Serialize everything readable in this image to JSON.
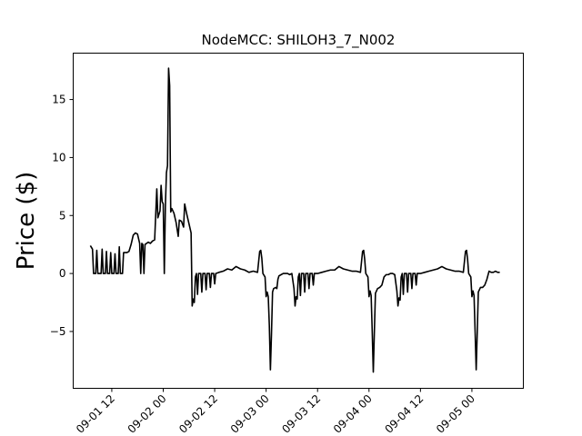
{
  "chart_data": {
    "type": "line",
    "title": "NodeMCC: SHILOH3_7_N002",
    "xlabel": "",
    "ylabel": "Price ($)",
    "x_axis_type": "time",
    "xlim": [
      "2015-09-01T03:00",
      "2015-09-05T12:00"
    ],
    "ylim": [
      -9.9,
      19.0
    ],
    "yticks": [
      -5,
      0,
      5,
      10,
      15
    ],
    "xticks": [
      {
        "x": "2015-09-01T12:00",
        "label": "09-01 12"
      },
      {
        "x": "2015-09-02T00:00",
        "label": "09-02 00"
      },
      {
        "x": "2015-09-02T12:00",
        "label": "09-02 12"
      },
      {
        "x": "2015-09-03T00:00",
        "label": "09-03 00"
      },
      {
        "x": "2015-09-03T12:00",
        "label": "09-03 12"
      },
      {
        "x": "2015-09-04T00:00",
        "label": "09-04 00"
      },
      {
        "x": "2015-09-04T12:00",
        "label": "09-04 12"
      },
      {
        "x": "2015-09-05T00:00",
        "label": "09-05 00"
      }
    ],
    "grid": false,
    "series": [
      {
        "color": "#000000",
        "points": [
          [
            "2015-09-01T07:00",
            2.4
          ],
          [
            "2015-09-01T07:30",
            2.1
          ],
          [
            "2015-09-01T07:45",
            0.0
          ],
          [
            "2015-09-01T08:15",
            0.0
          ],
          [
            "2015-09-01T08:30",
            2.0
          ],
          [
            "2015-09-01T08:45",
            0.0
          ],
          [
            "2015-09-01T09:30",
            0.0
          ],
          [
            "2015-09-01T09:45",
            2.1
          ],
          [
            "2015-09-01T10:00",
            0.0
          ],
          [
            "2015-09-01T10:30",
            0.0
          ],
          [
            "2015-09-01T10:45",
            1.9
          ],
          [
            "2015-09-01T11:00",
            0.0
          ],
          [
            "2015-09-01T11:30",
            0.0
          ],
          [
            "2015-09-01T11:45",
            1.8
          ],
          [
            "2015-09-01T12:00",
            0.0
          ],
          [
            "2015-09-01T12:30",
            0.0
          ],
          [
            "2015-09-01T12:45",
            1.7
          ],
          [
            "2015-09-01T13:00",
            0.0
          ],
          [
            "2015-09-01T13:30",
            0.0
          ],
          [
            "2015-09-01T13:45",
            2.3
          ],
          [
            "2015-09-01T14:00",
            0.0
          ],
          [
            "2015-09-01T14:30",
            0.0
          ],
          [
            "2015-09-01T14:45",
            1.8
          ],
          [
            "2015-09-01T15:30",
            1.8
          ],
          [
            "2015-09-01T16:00",
            1.9
          ],
          [
            "2015-09-01T16:30",
            2.5
          ],
          [
            "2015-09-01T17:00",
            3.3
          ],
          [
            "2015-09-01T17:30",
            3.5
          ],
          [
            "2015-09-01T18:00",
            3.4
          ],
          [
            "2015-09-01T18:30",
            2.6
          ],
          [
            "2015-09-01T18:45",
            0.0
          ],
          [
            "2015-09-01T19:00",
            2.6
          ],
          [
            "2015-09-01T19:15",
            2.5
          ],
          [
            "2015-09-01T19:30",
            0.0
          ],
          [
            "2015-09-01T19:45",
            2.5
          ],
          [
            "2015-09-01T20:30",
            2.7
          ],
          [
            "2015-09-01T21:00",
            2.6
          ],
          [
            "2015-09-01T21:30",
            2.8
          ],
          [
            "2015-09-01T22:00",
            2.9
          ],
          [
            "2015-09-01T22:30",
            7.3
          ],
          [
            "2015-09-01T22:45",
            4.8
          ],
          [
            "2015-09-01T23:15",
            5.4
          ],
          [
            "2015-09-01T23:30",
            7.6
          ],
          [
            "2015-09-01T23:45",
            6.2
          ],
          [
            "2015-09-02T00:00",
            6.0
          ],
          [
            "2015-09-02T00:15",
            0.0
          ],
          [
            "2015-09-02T00:30",
            5.8
          ],
          [
            "2015-09-02T00:45",
            8.7
          ],
          [
            "2015-09-02T01:00",
            9.3
          ],
          [
            "2015-09-02T01:15",
            17.7
          ],
          [
            "2015-09-02T01:30",
            16.2
          ],
          [
            "2015-09-02T01:45",
            5.3
          ],
          [
            "2015-09-02T02:00",
            5.6
          ],
          [
            "2015-09-02T02:30",
            5.2
          ],
          [
            "2015-09-02T03:00",
            4.4
          ],
          [
            "2015-09-02T03:30",
            3.2
          ],
          [
            "2015-09-02T03:45",
            4.6
          ],
          [
            "2015-09-02T04:15",
            4.5
          ],
          [
            "2015-09-02T04:45",
            4.0
          ],
          [
            "2015-09-02T05:00",
            6.0
          ],
          [
            "2015-09-02T05:30",
            5.1
          ],
          [
            "2015-09-02T06:00",
            4.3
          ],
          [
            "2015-09-02T06:30",
            3.5
          ],
          [
            "2015-09-02T06:45",
            -2.8
          ],
          [
            "2015-09-02T07:00",
            -2.2
          ],
          [
            "2015-09-02T07:15",
            -2.5
          ],
          [
            "2015-09-02T07:30",
            -0.3
          ],
          [
            "2015-09-02T07:45",
            0.0
          ],
          [
            "2015-09-02T08:00",
            -1.8
          ],
          [
            "2015-09-02T08:15",
            0.0
          ],
          [
            "2015-09-02T08:45",
            0.0
          ],
          [
            "2015-09-02T09:00",
            -1.6
          ],
          [
            "2015-09-02T09:15",
            0.0
          ],
          [
            "2015-09-02T09:45",
            0.0
          ],
          [
            "2015-09-02T10:00",
            -1.4
          ],
          [
            "2015-09-02T10:15",
            0.0
          ],
          [
            "2015-09-02T10:45",
            0.0
          ],
          [
            "2015-09-02T11:00",
            -1.2
          ],
          [
            "2015-09-02T11:15",
            0.0
          ],
          [
            "2015-09-02T11:45",
            0.0
          ],
          [
            "2015-09-02T12:00",
            -0.9
          ],
          [
            "2015-09-02T12:15",
            0.0
          ],
          [
            "2015-09-02T13:00",
            0.1
          ],
          [
            "2015-09-02T14:00",
            0.2
          ],
          [
            "2015-09-02T15:00",
            0.4
          ],
          [
            "2015-09-02T16:00",
            0.3
          ],
          [
            "2015-09-02T17:00",
            0.6
          ],
          [
            "2015-09-02T18:00",
            0.4
          ],
          [
            "2015-09-02T19:00",
            0.3
          ],
          [
            "2015-09-02T20:00",
            0.1
          ],
          [
            "2015-09-02T21:00",
            0.2
          ],
          [
            "2015-09-02T22:00",
            0.1
          ],
          [
            "2015-09-02T22:30",
            1.9
          ],
          [
            "2015-09-02T22:45",
            2.0
          ],
          [
            "2015-09-02T23:00",
            1.3
          ],
          [
            "2015-09-02T23:15",
            0.0
          ],
          [
            "2015-09-02T23:45",
            -0.3
          ],
          [
            "2015-09-03T00:00",
            -2.0
          ],
          [
            "2015-09-03T00:15",
            -1.6
          ],
          [
            "2015-09-03T00:30",
            -2.0
          ],
          [
            "2015-09-03T00:45",
            -4.5
          ],
          [
            "2015-09-03T01:00",
            -8.3
          ],
          [
            "2015-09-03T01:15",
            -5.2
          ],
          [
            "2015-09-03T01:30",
            -1.6
          ],
          [
            "2015-09-03T01:45",
            -1.3
          ],
          [
            "2015-09-03T02:15",
            -1.2
          ],
          [
            "2015-09-03T02:30",
            -1.3
          ],
          [
            "2015-09-03T02:45",
            -0.5
          ],
          [
            "2015-09-03T03:00",
            -0.2
          ],
          [
            "2015-09-03T03:30",
            -0.1
          ],
          [
            "2015-09-03T04:00",
            0.0
          ],
          [
            "2015-09-03T05:00",
            0.0
          ],
          [
            "2015-09-03T05:30",
            -0.1
          ],
          [
            "2015-09-03T06:00",
            0.0
          ],
          [
            "2015-09-03T06:30",
            -1.3
          ],
          [
            "2015-09-03T06:45",
            -2.8
          ],
          [
            "2015-09-03T07:00",
            -2.0
          ],
          [
            "2015-09-03T07:15",
            -2.2
          ],
          [
            "2015-09-03T07:30",
            -0.3
          ],
          [
            "2015-09-03T07:45",
            0.0
          ],
          [
            "2015-09-03T08:00",
            -1.9
          ],
          [
            "2015-09-03T08:15",
            0.0
          ],
          [
            "2015-09-03T08:45",
            0.0
          ],
          [
            "2015-09-03T09:00",
            -1.6
          ],
          [
            "2015-09-03T09:15",
            0.0
          ],
          [
            "2015-09-03T09:45",
            0.0
          ],
          [
            "2015-09-03T10:00",
            -1.3
          ],
          [
            "2015-09-03T10:15",
            0.0
          ],
          [
            "2015-09-03T10:45",
            0.0
          ],
          [
            "2015-09-03T11:00",
            -1.0
          ],
          [
            "2015-09-03T11:15",
            0.0
          ],
          [
            "2015-09-03T12:00",
            0.0
          ],
          [
            "2015-09-03T13:00",
            0.1
          ],
          [
            "2015-09-03T14:00",
            0.2
          ],
          [
            "2015-09-03T15:00",
            0.3
          ],
          [
            "2015-09-03T16:00",
            0.3
          ],
          [
            "2015-09-03T17:00",
            0.6
          ],
          [
            "2015-09-03T18:00",
            0.4
          ],
          [
            "2015-09-03T19:00",
            0.3
          ],
          [
            "2015-09-03T20:00",
            0.2
          ],
          [
            "2015-09-03T21:00",
            0.2
          ],
          [
            "2015-09-03T22:00",
            0.1
          ],
          [
            "2015-09-03T22:30",
            1.9
          ],
          [
            "2015-09-03T22:45",
            2.0
          ],
          [
            "2015-09-03T23:00",
            1.2
          ],
          [
            "2015-09-03T23:15",
            0.0
          ],
          [
            "2015-09-03T23:45",
            -0.3
          ],
          [
            "2015-09-04T00:00",
            -2.0
          ],
          [
            "2015-09-04T00:15",
            -1.5
          ],
          [
            "2015-09-04T00:30",
            -1.9
          ],
          [
            "2015-09-04T00:45",
            -5.0
          ],
          [
            "2015-09-04T01:00",
            -8.5
          ],
          [
            "2015-09-04T01:15",
            -5.0
          ],
          [
            "2015-09-04T01:30",
            -1.7
          ],
          [
            "2015-09-04T02:00",
            -1.3
          ],
          [
            "2015-09-04T02:30",
            -1.2
          ],
          [
            "2015-09-04T03:00",
            -1.0
          ],
          [
            "2015-09-04T03:30",
            -0.3
          ],
          [
            "2015-09-04T04:00",
            -0.1
          ],
          [
            "2015-09-04T04:30",
            -0.1
          ],
          [
            "2015-09-04T05:00",
            0.0
          ],
          [
            "2015-09-04T05:30",
            0.0
          ],
          [
            "2015-09-04T06:00",
            -0.1
          ],
          [
            "2015-09-04T06:30",
            -1.5
          ],
          [
            "2015-09-04T06:45",
            -2.8
          ],
          [
            "2015-09-04T07:00",
            -2.1
          ],
          [
            "2015-09-04T07:15",
            -2.3
          ],
          [
            "2015-09-04T07:30",
            -0.3
          ],
          [
            "2015-09-04T07:45",
            0.0
          ],
          [
            "2015-09-04T08:00",
            -1.8
          ],
          [
            "2015-09-04T08:15",
            0.0
          ],
          [
            "2015-09-04T08:45",
            0.0
          ],
          [
            "2015-09-04T09:00",
            -1.6
          ],
          [
            "2015-09-04T09:15",
            0.0
          ],
          [
            "2015-09-04T09:45",
            0.0
          ],
          [
            "2015-09-04T10:00",
            -1.3
          ],
          [
            "2015-09-04T10:15",
            0.0
          ],
          [
            "2015-09-04T10:45",
            0.0
          ],
          [
            "2015-09-04T11:00",
            -1.0
          ],
          [
            "2015-09-04T11:15",
            0.0
          ],
          [
            "2015-09-04T12:00",
            0.0
          ],
          [
            "2015-09-04T13:00",
            0.1
          ],
          [
            "2015-09-04T14:00",
            0.2
          ],
          [
            "2015-09-04T15:00",
            0.3
          ],
          [
            "2015-09-04T16:00",
            0.4
          ],
          [
            "2015-09-04T17:00",
            0.6
          ],
          [
            "2015-09-04T18:00",
            0.4
          ],
          [
            "2015-09-04T19:00",
            0.3
          ],
          [
            "2015-09-04T20:00",
            0.2
          ],
          [
            "2015-09-04T21:00",
            0.2
          ],
          [
            "2015-09-04T22:00",
            0.1
          ],
          [
            "2015-09-04T22:30",
            1.9
          ],
          [
            "2015-09-04T22:45",
            2.0
          ],
          [
            "2015-09-04T23:00",
            1.2
          ],
          [
            "2015-09-04T23:15",
            0.0
          ],
          [
            "2015-09-04T23:45",
            -0.3
          ],
          [
            "2015-09-05T00:00",
            -2.0
          ],
          [
            "2015-09-05T00:15",
            -1.5
          ],
          [
            "2015-09-05T00:30",
            -1.9
          ],
          [
            "2015-09-05T00:45",
            -5.0
          ],
          [
            "2015-09-05T01:00",
            -8.3
          ],
          [
            "2015-09-05T01:15",
            -5.0
          ],
          [
            "2015-09-05T01:30",
            -1.6
          ],
          [
            "2015-09-05T02:00",
            -1.2
          ],
          [
            "2015-09-05T02:30",
            -1.2
          ],
          [
            "2015-09-05T03:00",
            -1.0
          ],
          [
            "2015-09-05T03:30",
            -0.5
          ],
          [
            "2015-09-05T04:00",
            0.2
          ],
          [
            "2015-09-05T04:30",
            0.1
          ],
          [
            "2015-09-05T05:00",
            0.1
          ],
          [
            "2015-09-05T05:30",
            0.2
          ],
          [
            "2015-09-05T06:00",
            0.1
          ],
          [
            "2015-09-05T06:30",
            0.1
          ]
        ]
      }
    ]
  }
}
